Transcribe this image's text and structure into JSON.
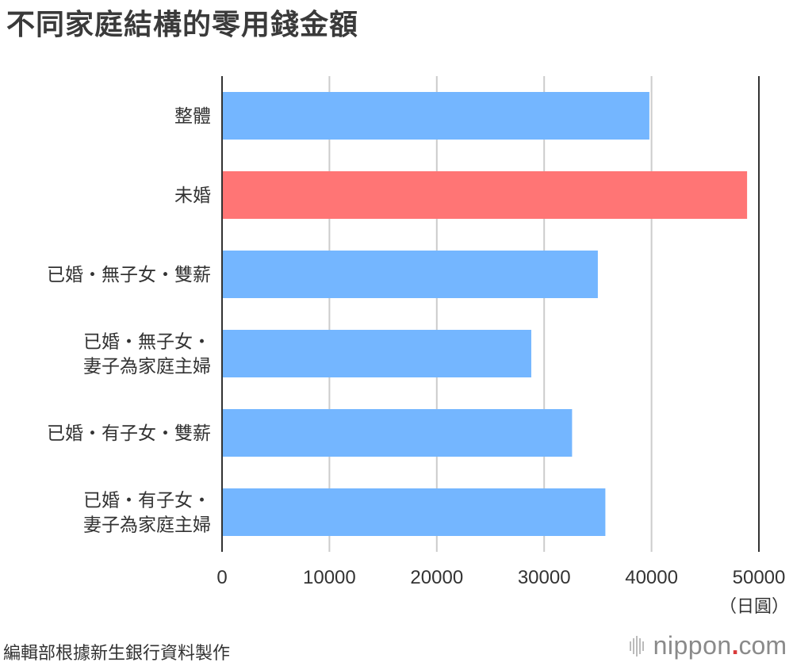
{
  "chart_data": {
    "type": "bar",
    "orientation": "horizontal",
    "title": "不同家庭結構的零用錢金額",
    "categories": [
      [
        "整體"
      ],
      [
        "未婚"
      ],
      [
        "已婚・無子女・雙薪"
      ],
      [
        "已婚・無子女・",
        "妻子為家庭主婦"
      ],
      [
        "已婚・有子女・雙薪"
      ],
      [
        "已婚・有子女・",
        "妻子為家庭主婦"
      ]
    ],
    "values": [
      39800,
      48900,
      35000,
      28800,
      32600,
      35700
    ],
    "bar_colors": [
      "#74b6ff",
      "#ff7575",
      "#74b6ff",
      "#74b6ff",
      "#74b6ff",
      "#74b6ff"
    ],
    "xlim": [
      0,
      50000
    ],
    "xticks": [
      0,
      10000,
      20000,
      30000,
      40000,
      50000
    ],
    "xtick_labels": [
      "0",
      "10000",
      "20000",
      "30000",
      "40000",
      "50000"
    ],
    "unit": "（日圓）",
    "grid": true
  },
  "source": "編輯部根據新生銀行資料製作",
  "brand": {
    "name": "nippon",
    "dot": ".",
    "tld": "com"
  }
}
